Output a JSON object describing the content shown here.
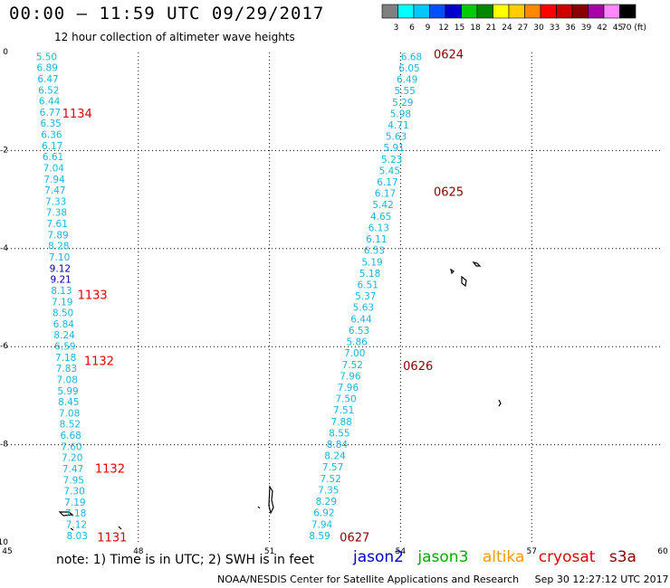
{
  "header": {
    "title": "00:00 – 11:59 UTC 09/29/2017",
    "subtitle": "12 hour collection of altimeter wave heights"
  },
  "colorbar": {
    "labels": [
      "3",
      "6",
      "9",
      "12",
      "15",
      "18",
      "21",
      "24",
      "27",
      "30",
      "33",
      "36",
      "39",
      "42",
      "45",
      "70 (ft)"
    ],
    "colors": [
      "#808080",
      "#00ffff",
      "#00c8ff",
      "#0050ff",
      "#0000cc",
      "#00cc00",
      "#008800",
      "#ffff00",
      "#ffcc00",
      "#ff8800",
      "#ff0000",
      "#cc0000",
      "#880000",
      "#aa00aa",
      "#ff88ff",
      "#000000"
    ]
  },
  "footer": {
    "note": "note: 1) Time is in UTC; 2) SWH is in feet",
    "legend": [
      {
        "name": "jason2",
        "color": "#0000cc"
      },
      {
        "name": "jason3",
        "color": "#00aa00"
      },
      {
        "name": "altika",
        "color": "#ff9900"
      },
      {
        "name": "cryosat",
        "color": "#dd0000"
      },
      {
        "name": "s3a",
        "color": "#880000"
      }
    ],
    "credit": "NOAA/NESDIS Center for Satellite Applications and Research",
    "timestamp": "Sep 30 12:27:12 UTC 2017"
  },
  "chart_data": {
    "type": "scatter",
    "xlim": [
      45,
      60
    ],
    "ylim": [
      -10,
      0
    ],
    "x_ticks": [
      "45",
      "48",
      "51",
      "54",
      "57",
      "60"
    ],
    "y_ticks": [
      "0",
      "-2",
      "-4",
      "-6",
      "-8",
      "-10"
    ],
    "grid": true,
    "tracks": [
      {
        "satellite": "cryosat",
        "color": "#19b6d8",
        "x_start": 45.9,
        "y_start": -0.08,
        "x_end": 46.6,
        "y_end": -9.85,
        "values": [
          "5.50",
          "6.89",
          "6.47",
          "6.52",
          "6.44",
          "6.77",
          "6.35",
          "6.36",
          "6.17",
          "6.61",
          "7.04",
          "7.94",
          "7.47",
          "7.33",
          "7.38",
          "7.61",
          "7.89",
          "8.28",
          "7.10",
          "9.12",
          "9.21",
          "8.13",
          "7.19",
          "8.50",
          "6.84",
          "8.24",
          "6.59",
          "7.18",
          "7.83",
          "7.08",
          "5.99",
          "8.45",
          "7.08",
          "8.52",
          "6.68",
          "7.60",
          "7.20",
          "7.47",
          "7.95",
          "7.30",
          "7.19",
          "7.18",
          "7.12",
          "8.03"
        ],
        "emphasis_index": [
          19,
          20
        ],
        "emphasis_color": "#0000aa",
        "time_labels": [
          {
            "text": "1134",
            "x": 46.6,
            "y": -1.25
          },
          {
            "text": "1133",
            "x": 46.95,
            "y": -4.95
          },
          {
            "text": "1132",
            "x": 47.1,
            "y": -6.3
          },
          {
            "text": "1132",
            "x": 47.35,
            "y": -8.5
          },
          {
            "text": "1131",
            "x": 47.4,
            "y": -9.9
          }
        ],
        "time_color": "#dd0000"
      },
      {
        "satellite": "s3a",
        "color": "#19b6d8",
        "x_start": 54.25,
        "y_start": -0.08,
        "x_end": 52.15,
        "y_end": -9.85,
        "values": [
          "6.68",
          "6.05",
          "6.49",
          "5.55",
          "5.29",
          "5.98",
          "4.71",
          "5.63",
          "5.91",
          "5.23",
          "5.45",
          "6.17",
          "6.17",
          "5.42",
          "4.65",
          "6.13",
          "6.11",
          "6.53",
          "5.19",
          "5.18",
          "6.51",
          "5.37",
          "5.63",
          "6.44",
          "6.53",
          "5.86",
          "7.00",
          "7.52",
          "7.96",
          "7.96",
          "7.50",
          "7.51",
          "7.88",
          "8.55",
          "8.84",
          "8.24",
          "7.57",
          "7.52",
          "7.35",
          "8.29",
          "6.92",
          "7.94",
          "8.59"
        ],
        "emphasis_index": [],
        "emphasis_color": "#0000aa",
        "time_labels": [
          {
            "text": "0624",
            "x": 55.1,
            "y": -0.05
          },
          {
            "text": "0625",
            "x": 55.1,
            "y": -2.85
          },
          {
            "text": "0626",
            "x": 54.4,
            "y": -6.4
          },
          {
            "text": "0627",
            "x": 52.95,
            "y": -9.9
          }
        ],
        "time_color": "#880000"
      }
    ]
  }
}
